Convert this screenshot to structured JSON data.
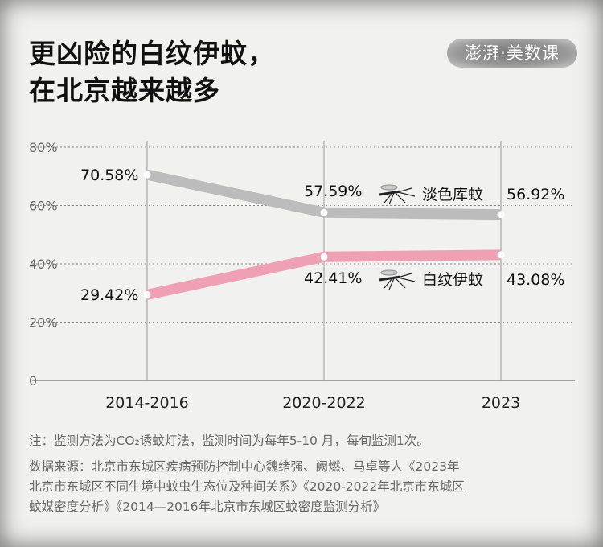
{
  "title_lines": [
    "更凶险的白纹伊蚊，",
    "在北京越来越多"
  ],
  "logo": "澎湃·美数课",
  "chart_data": {
    "type": "line",
    "categories": [
      "2014-2016",
      "2020-2022",
      "2023"
    ],
    "yticks": [
      "0",
      "20%",
      "40%",
      "60%",
      "80%"
    ],
    "ylim": [
      0,
      80
    ],
    "grid": true,
    "series": [
      {
        "name": "淡色库蚊",
        "values": [
          70.58,
          57.59,
          56.92
        ],
        "labels": [
          "70.58%",
          "57.59%",
          "56.92%"
        ],
        "color": "#bcbcbc"
      },
      {
        "name": "白纹伊蚊",
        "values": [
          29.42,
          42.41,
          43.08
        ],
        "labels": [
          "29.42%",
          "42.41%",
          "43.08%"
        ],
        "color": "#f0a0b4"
      }
    ]
  },
  "icons": [
    "mosquito-icon",
    "mosquito-icon"
  ],
  "note": "注：监测方法为CO₂诱蚊灯法，监测时间为每年5-10 月，每旬监测1次。",
  "source": [
    "数据来源：北京市东城区疾病预防控制中心魏绪强、阙燃、马卓等人《2023年",
    "北京市东城区不同生境中蚊虫生态位及种间关系》《2020-2022年北京市东城区",
    "蚊媒密度分析》《2014—2016年北京市东城区蚊密度监测分析》"
  ]
}
